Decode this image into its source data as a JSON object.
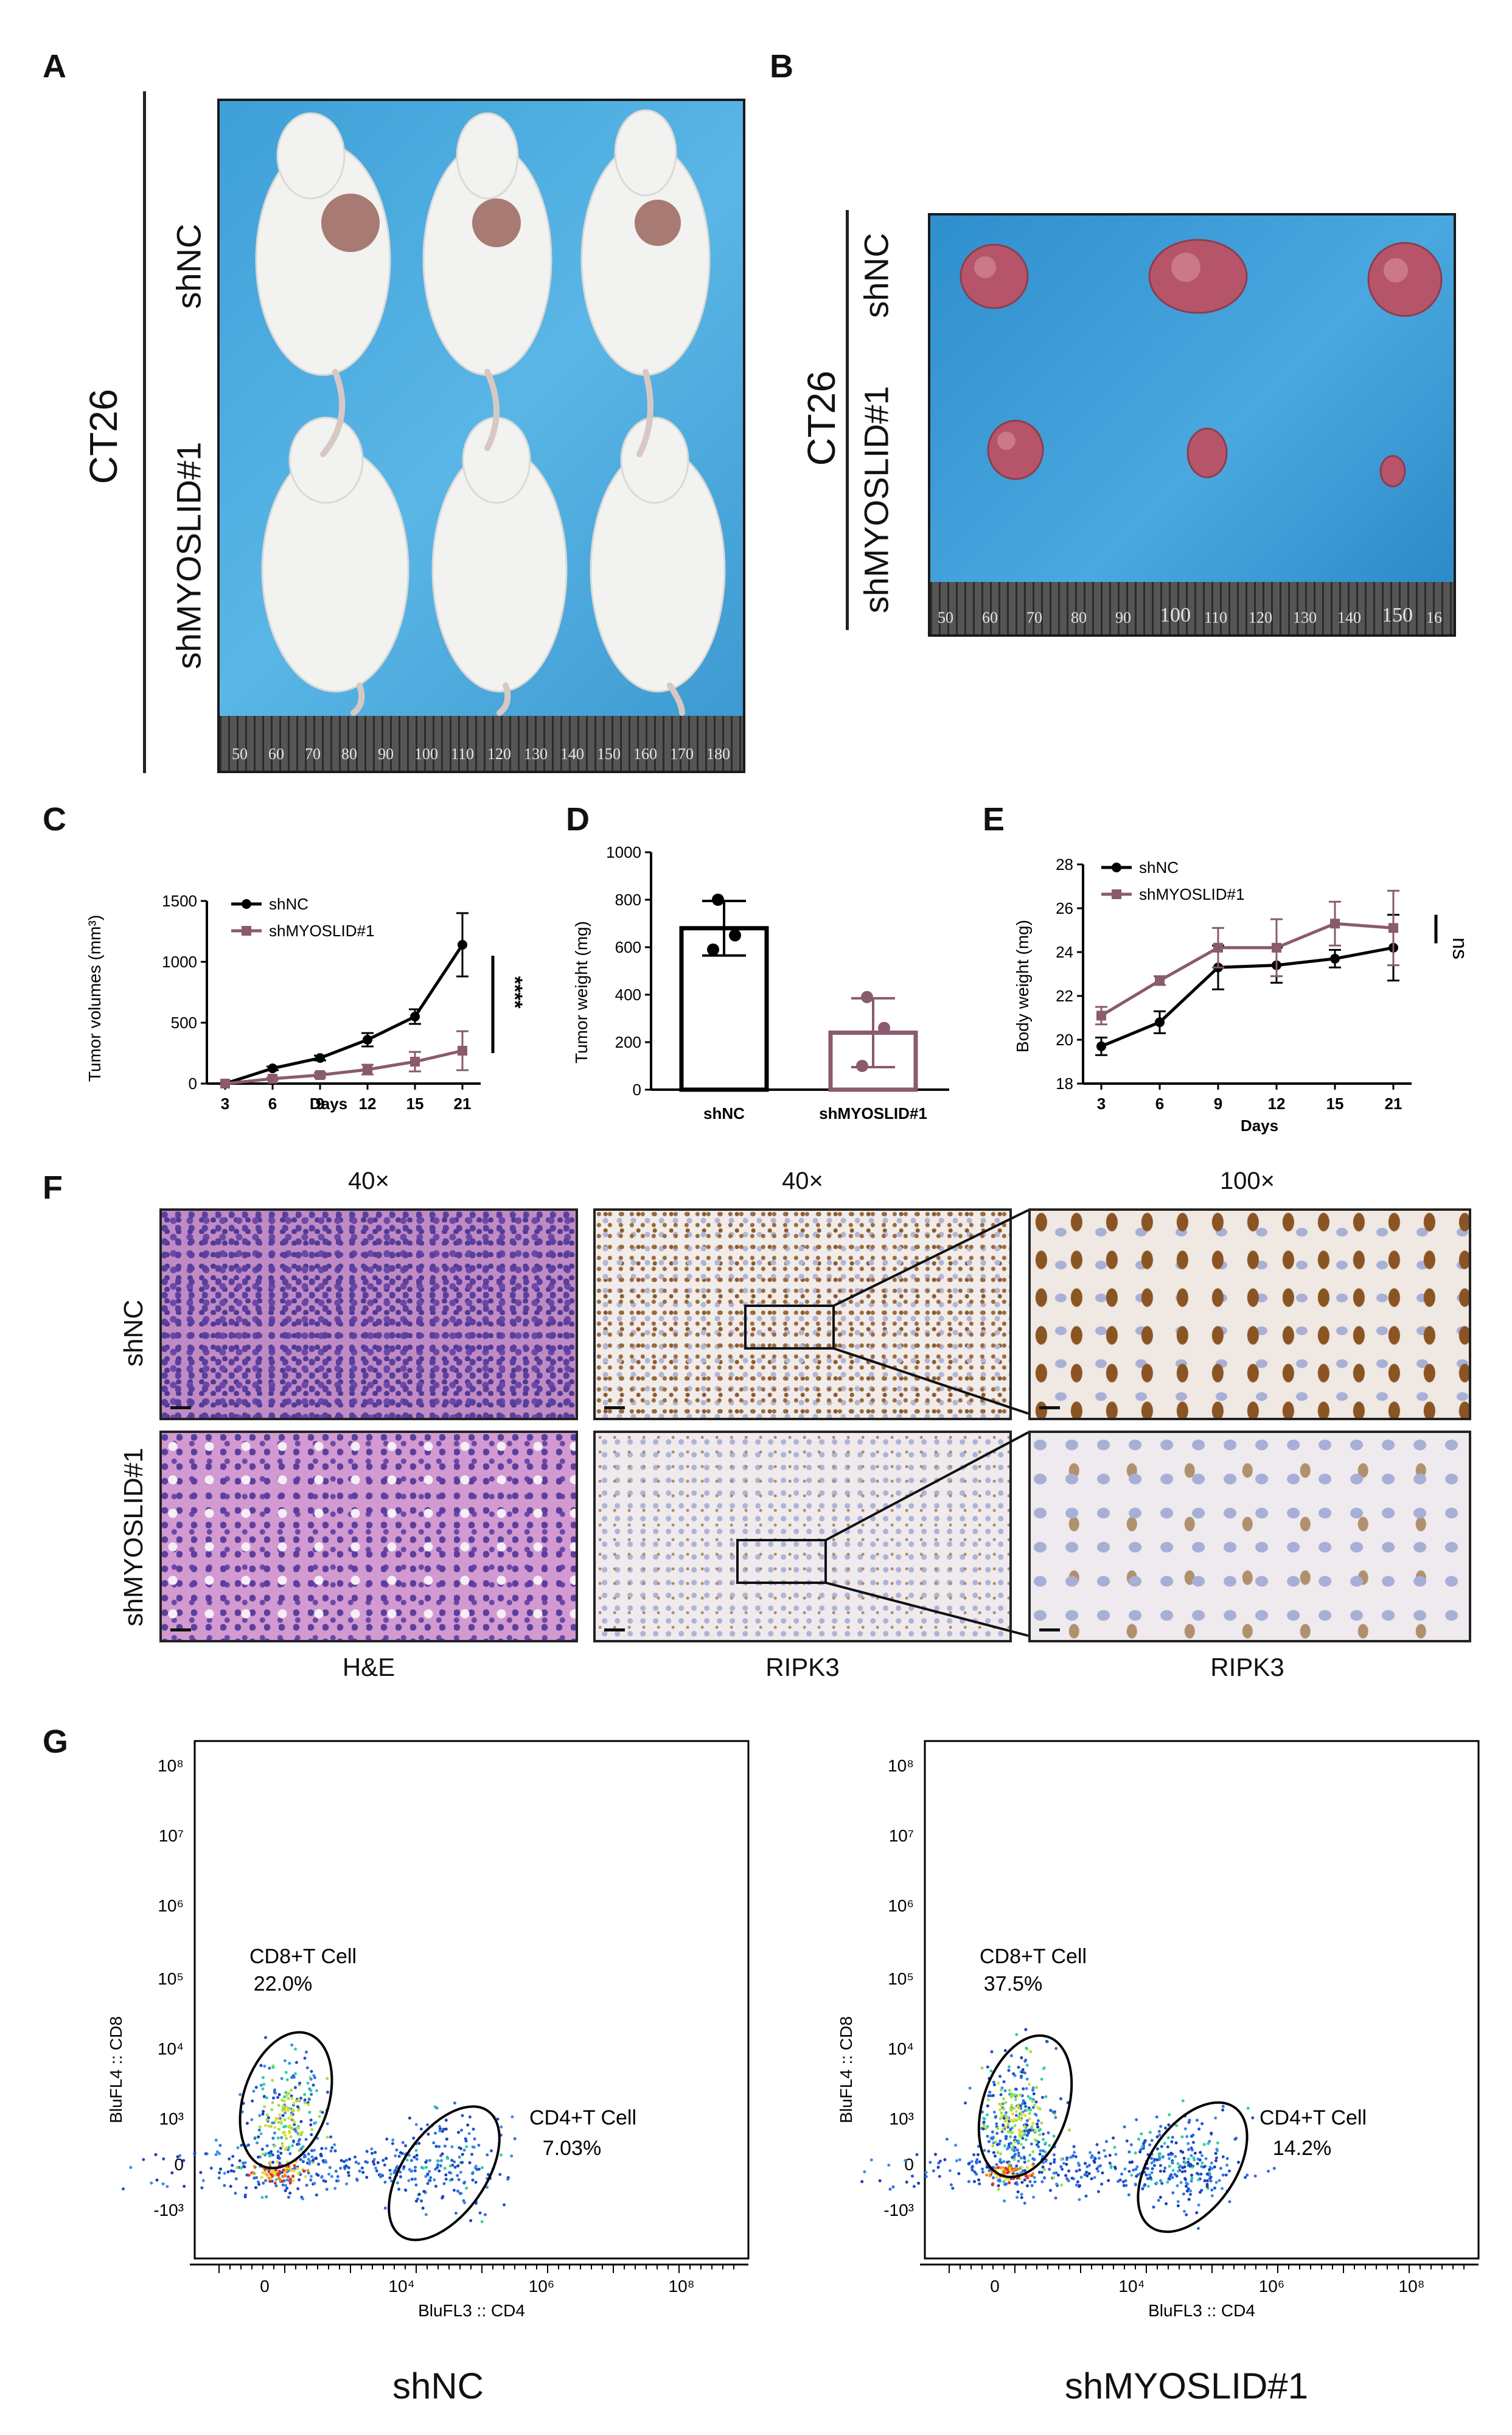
{
  "panels": {
    "A": {
      "letter": "A",
      "cell_line": "CT26",
      "groups": [
        "shNC",
        "shMYOSLID#1"
      ],
      "ruler_ticks": [
        "50",
        "60",
        "70",
        "80",
        "90",
        "100",
        "110",
        "120",
        "130",
        "140",
        "150",
        "160",
        "170",
        "180"
      ]
    },
    "B": {
      "letter": "B",
      "cell_line": "CT26",
      "groups": [
        "shNC",
        "shMYOSLID#1"
      ],
      "ruler_ticks": [
        "50",
        "60",
        "70",
        "80",
        "90",
        "100",
        "110",
        "120",
        "130",
        "140",
        "150",
        "16"
      ]
    },
    "C": {
      "letter": "C",
      "significance": "****"
    },
    "D": {
      "letter": "D"
    },
    "E": {
      "letter": "E",
      "significance": "ns"
    },
    "F": {
      "letter": "F",
      "column_headers": [
        "40×",
        "40×",
        "100×"
      ],
      "row_labels": [
        "shNC",
        "shMYOSLID#1"
      ],
      "column_footers": [
        "H&E",
        "RIPK3",
        "RIPK3"
      ]
    },
    "G": {
      "letter": "G",
      "plots": [
        {
          "title": "shNC",
          "cd8_label": "CD8+T Cell",
          "cd8_pct": "22.0%",
          "cd4_label": "CD4+T Cell",
          "cd4_pct": "7.03%"
        },
        {
          "title": "shMYOSLID#1",
          "cd8_label": "CD8+T Cell",
          "cd8_pct": "37.5%",
          "cd4_label": "CD4+T Cell",
          "cd4_pct": "14.2%"
        }
      ],
      "ylabel": "BluFL4 :: CD8",
      "xlabel": "BluFL3 :: CD4",
      "y_ticks": [
        "10⁸",
        "10⁷",
        "10⁶",
        "10⁵",
        "10⁴",
        "10³",
        "0",
        "-10³"
      ],
      "x_ticks": [
        "0",
        "10⁴",
        "10⁶",
        "10⁸"
      ]
    }
  },
  "colors": {
    "shNC": "#000000",
    "shMYOSLID": "#8a5a6e"
  },
  "chart_data": [
    {
      "type": "line",
      "panel": "C",
      "ylabel": "Tumor volumes (mm³)",
      "xlabel": "Days",
      "x": [
        3,
        6,
        9,
        12,
        15,
        21
      ],
      "yticks": [
        0,
        500,
        1000,
        1500
      ],
      "ylim": [
        0,
        1500
      ],
      "series": [
        {
          "name": "shNC",
          "values": [
            0,
            125,
            210,
            360,
            550,
            1140
          ],
          "errors": [
            0,
            15,
            20,
            55,
            60,
            260
          ]
        },
        {
          "name": "shMYOSLID#1",
          "values": [
            0,
            40,
            70,
            115,
            180,
            270
          ],
          "errors": [
            0,
            10,
            20,
            40,
            80,
            160
          ]
        }
      ]
    },
    {
      "type": "bar",
      "panel": "D",
      "ylabel": "Tumor weight (mg)",
      "categories": [
        "shNC",
        "shMYOSLID#1"
      ],
      "values": [
        680,
        240
      ],
      "errors": [
        115,
        145
      ],
      "points": [
        [
          800,
          650,
          590
        ],
        [
          390,
          260,
          100
        ]
      ],
      "yticks": [
        0,
        200,
        400,
        600,
        800,
        1000
      ],
      "ylim": [
        0,
        1000
      ]
    },
    {
      "type": "line",
      "panel": "E",
      "ylabel": "Body weight (mg)",
      "xlabel": "Days",
      "x": [
        3,
        6,
        9,
        12,
        15,
        21
      ],
      "yticks": [
        18,
        20,
        22,
        24,
        26,
        28
      ],
      "ylim": [
        18,
        28
      ],
      "series": [
        {
          "name": "shNC",
          "values": [
            19.7,
            20.8,
            23.3,
            23.4,
            23.7,
            24.2
          ],
          "errors": [
            0.4,
            0.5,
            1.0,
            0.8,
            0.4,
            1.5
          ]
        },
        {
          "name": "shMYOSLID#1",
          "values": [
            21.1,
            22.7,
            24.2,
            24.2,
            25.3,
            25.1
          ],
          "errors": [
            0.4,
            0.2,
            0.9,
            1.3,
            1.0,
            1.7
          ]
        }
      ]
    }
  ]
}
